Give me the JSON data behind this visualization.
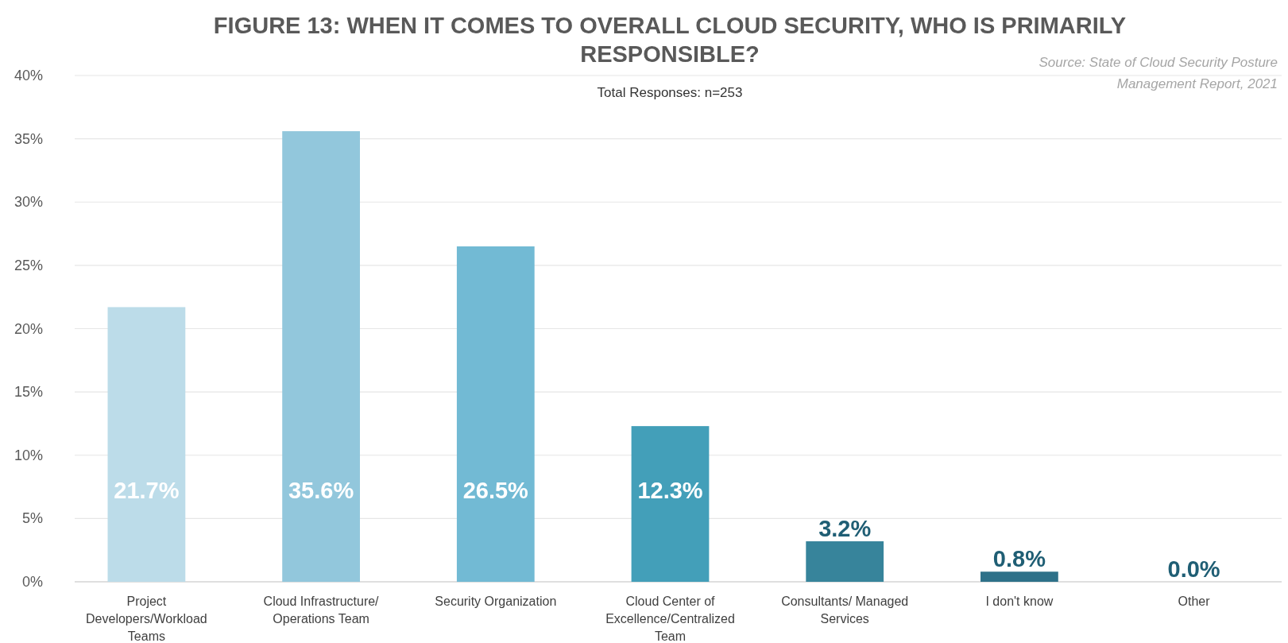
{
  "chart_data": {
    "type": "bar",
    "title": "FIGURE 13: WHEN IT COMES TO OVERALL CLOUD SECURITY, WHO IS PRIMARILY RESPONSIBLE?",
    "subtitle": "Total Responses: n=253",
    "annotations": [
      "Source: State of Cloud Security Posture Management Report, 2021"
    ],
    "categories": [
      "Project Developers/Workload Teams",
      "Cloud Infrastructure/ Operations Team",
      "Security Organization",
      "Cloud Center of Excellence/Centralized Team",
      "Consultants/ Managed Services",
      "I don't know",
      "Other"
    ],
    "values": [
      21.7,
      35.6,
      26.5,
      12.3,
      3.2,
      0.8,
      0.0
    ],
    "colors": [
      "#bcdce9",
      "#92c7dc",
      "#72bad4",
      "#439fb9",
      "#37849b",
      "#2e7189",
      "#2e7189"
    ],
    "value_labels": [
      "21.7%",
      "35.6%",
      "26.5%",
      "12.3%",
      "3.2%",
      "0.8%",
      "0.0%"
    ],
    "ylim": [
      0,
      40
    ],
    "yticks": [
      {
        "value": 0,
        "label": "0%"
      },
      {
        "value": 5,
        "label": "5%"
      },
      {
        "value": 10,
        "label": "10%"
      },
      {
        "value": 15,
        "label": "15%"
      },
      {
        "value": 20,
        "label": "20%"
      },
      {
        "value": 25,
        "label": "25%"
      },
      {
        "value": 30,
        "label": "30%"
      },
      {
        "value": 35,
        "label": "35%"
      },
      {
        "value": 40,
        "label": "40%"
      }
    ],
    "grid": "y"
  }
}
